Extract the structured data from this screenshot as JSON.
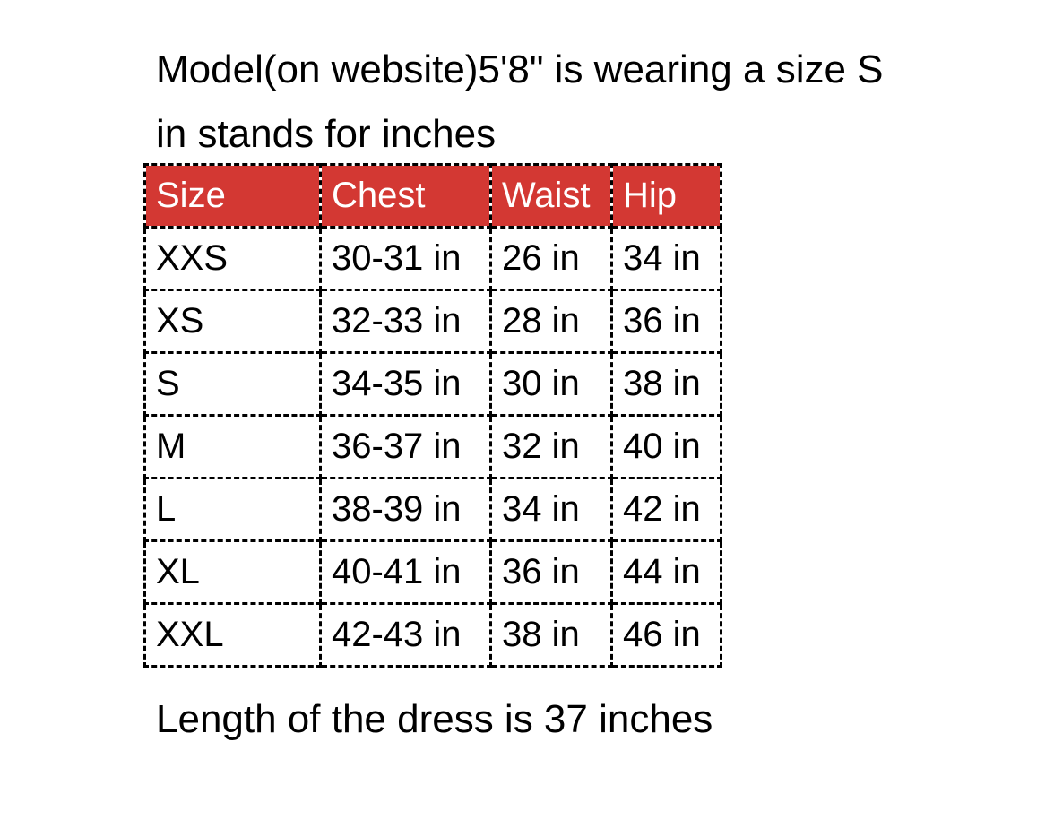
{
  "colors": {
    "page_background": "#ffffff",
    "header_background": "#d33833",
    "header_text": "#ffffff",
    "body_text": "#000000",
    "border": "#000000"
  },
  "chart_data": {
    "type": "table",
    "columns": [
      "Size",
      "Chest",
      "Waist",
      "Hip"
    ],
    "rows": [
      [
        "XXS",
        "30-31 in",
        "26 in",
        "34 in"
      ],
      [
        "XS",
        "32-33 in",
        "28 in",
        "36 in"
      ],
      [
        "S",
        "34-35 in",
        "30 in",
        "38 in"
      ],
      [
        "M",
        "36-37 in",
        "32 in",
        "40 in"
      ],
      [
        "L",
        "38-39 in",
        "34 in",
        "42 in"
      ],
      [
        "XL",
        "40-41 in",
        "36 in",
        "44 in"
      ],
      [
        "XXL",
        "42-43 in",
        "38 in",
        "46 in"
      ]
    ],
    "notes": [
      "Model(on website)5'8\" is wearing a size S",
      "in stands for inches",
      "Length of the dress is 37 inches"
    ],
    "unit": "inches",
    "layout": {
      "header_fill": "#d33833",
      "border_style": "dashed",
      "grid": true
    }
  }
}
